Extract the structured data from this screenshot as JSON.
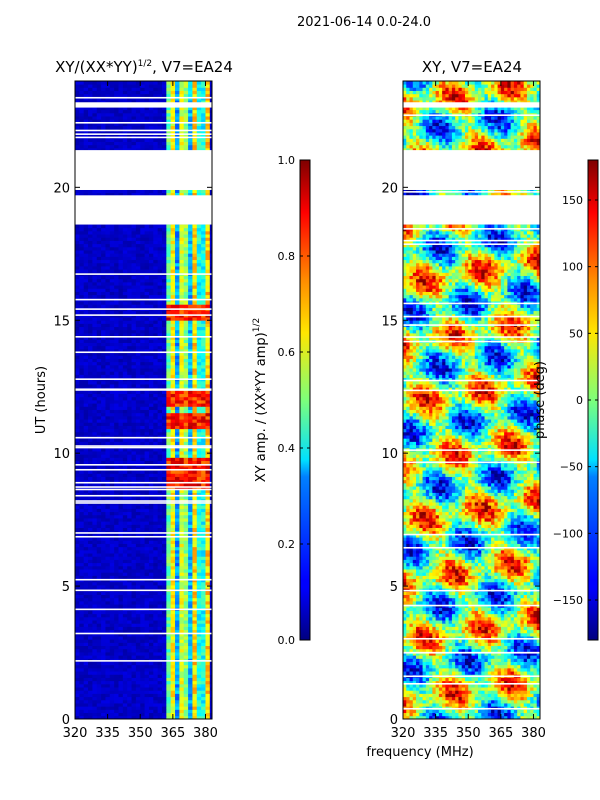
{
  "suptitle": "2021-06-14 0.0-24.0",
  "shared": {
    "xlabel": "frequency (MHz)"
  },
  "chart_data": [
    {
      "type": "heatmap",
      "title": "XY/(XX*YY)",
      "title_exponent": "1/2",
      "title_suffix": ", V7=EA24",
      "xlabel": "",
      "ylabel": "UT (hours)",
      "xlim": [
        320,
        383
      ],
      "ylim": [
        0,
        24
      ],
      "xticks": [
        320,
        335,
        350,
        365,
        380
      ],
      "yticks": [
        0,
        5,
        10,
        15,
        20
      ],
      "colorbar": {
        "label": "XY amp. / (XX*YY amp)",
        "label_exponent": "1/2",
        "range": [
          0.0,
          1.0
        ],
        "ticks": [
          "0.0",
          "0.2",
          "0.4",
          "0.6",
          "0.8",
          "1.0"
        ],
        "colormap": "jet"
      },
      "no_data_ut_ranges": [
        [
          19.9,
          21.4
        ],
        [
          18.6,
          19.7
        ],
        [
          23.0,
          23.2
        ]
      ],
      "signal_frequency_range_mhz": [
        363,
        381
      ],
      "high_amplitude_ut_hours": [
        12.0,
        11.2,
        15.3,
        9.5,
        8.9
      ]
    },
    {
      "type": "heatmap",
      "title": "XY, V7=EA24",
      "xlabel": "frequency (MHz)",
      "ylabel": "",
      "xlim": [
        320,
        383
      ],
      "ylim": [
        0,
        24
      ],
      "xticks": [
        320,
        335,
        350,
        365,
        380
      ],
      "yticks": [
        0,
        5,
        10,
        15,
        20
      ],
      "colorbar": {
        "label": "phase (deg)",
        "range": [
          -180,
          180
        ],
        "ticks": [
          "−150",
          "−100",
          "−50",
          "0",
          "50",
          "100",
          "150"
        ],
        "colormap": "jet"
      },
      "no_data_ut_ranges": [
        [
          19.9,
          21.4
        ],
        [
          18.6,
          19.7
        ],
        [
          23.0,
          23.2
        ]
      ]
    }
  ]
}
